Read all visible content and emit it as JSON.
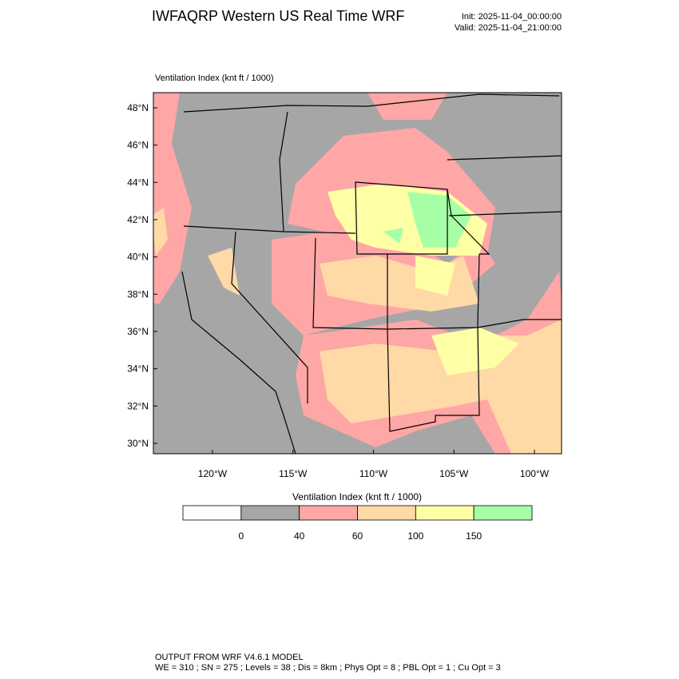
{
  "header": {
    "title": "IWFAQRP Western US Real Time WRF",
    "init": "Init: 2025-11-04_00:00:00",
    "valid": "Valid: 2025-11-04_21:00:00"
  },
  "map": {
    "title": "Ventilation Index   (knt ft / 1000)",
    "lat_ticks": [
      {
        "value": 48,
        "label": "48°N"
      },
      {
        "value": 46,
        "label": "46°N"
      },
      {
        "value": 44,
        "label": "44°N"
      },
      {
        "value": 42,
        "label": "42°N"
      },
      {
        "value": 40,
        "label": "40°N"
      },
      {
        "value": 38,
        "label": "38°N"
      },
      {
        "value": 36,
        "label": "36°N"
      },
      {
        "value": 34,
        "label": "34°N"
      },
      {
        "value": 32,
        "label": "32°N"
      },
      {
        "value": 30,
        "label": "30°N"
      }
    ],
    "lon_ticks": [
      {
        "value": -120,
        "label": "120°W"
      },
      {
        "value": -115,
        "label": "115°W"
      },
      {
        "value": -110,
        "label": "110°W"
      },
      {
        "value": -105,
        "label": "105°W"
      },
      {
        "value": -100,
        "label": "100°W"
      }
    ]
  },
  "colorbar": {
    "title": "Ventilation Index   (knt ft / 1000)",
    "levels": [
      0,
      40,
      60,
      100,
      150
    ],
    "colors": [
      "#ffffff",
      "#a6a6a6",
      "#ffa6a6",
      "#ffd9a6",
      "#ffffa6",
      "#a6ffa6"
    ]
  },
  "footer": {
    "line1": "OUTPUT FROM WRF V4.6.1 MODEL",
    "line2": "WE = 310 ; SN = 275 ; Levels = 38 ; Dis = 8km ; Phys Opt = 8 ; PBL Opt = 1 ; Cu Opt = 3"
  }
}
